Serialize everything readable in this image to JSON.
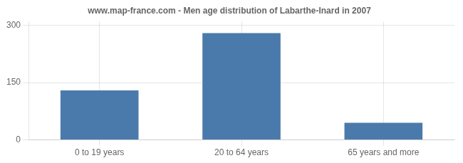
{
  "chart_data": {
    "type": "bar",
    "title": "www.map-france.com - Men age distribution of Labarthe-Inard in 2007",
    "categories": [
      "0 to 19 years",
      "20 to 64 years",
      "65 years and more"
    ],
    "values": [
      130,
      280,
      45
    ],
    "color": "#4a7aab",
    "ylim": [
      0,
      310
    ],
    "yticks": [
      0,
      150,
      300
    ],
    "grid": true
  }
}
